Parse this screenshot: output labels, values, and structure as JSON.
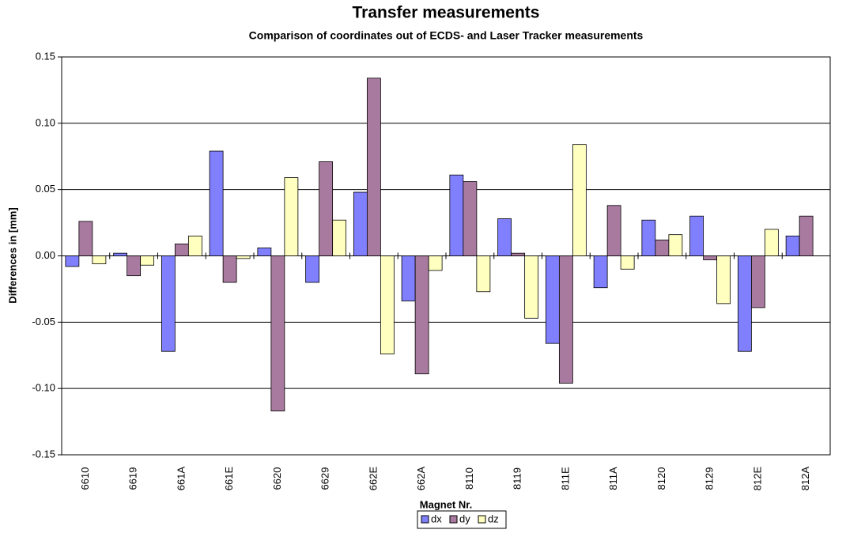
{
  "chart_data": {
    "type": "bar",
    "title": "Transfer measurements",
    "subtitle": "Comparison of coordinates out of ECDS- and Laser Tracker measurements",
    "x_label": "Magnet Nr.",
    "y_label": "Differences in [mm]",
    "categories": [
      "6610",
      "6619",
      "661A",
      "661E",
      "6620",
      "6629",
      "662E",
      "662A",
      "8110",
      "8119",
      "811E",
      "811A",
      "8120",
      "8129",
      "812E",
      "812A"
    ],
    "series": [
      {
        "name": "dx",
        "color": "#8080ff",
        "values": [
          -0.008,
          0.002,
          -0.072,
          0.079,
          0.006,
          -0.02,
          0.048,
          -0.034,
          0.061,
          0.028,
          -0.066,
          -0.024,
          0.027,
          0.03,
          -0.072,
          0.015
        ]
      },
      {
        "name": "dy",
        "color": "#a97a9f",
        "values": [
          0.026,
          -0.015,
          0.009,
          -0.02,
          -0.117,
          0.071,
          0.134,
          -0.089,
          0.056,
          0.002,
          -0.096,
          0.038,
          0.012,
          -0.003,
          -0.039,
          0.03
        ]
      },
      {
        "name": "dz",
        "color": "#ffffc0",
        "values": [
          -0.006,
          -0.007,
          0.015,
          -0.002,
          0.059,
          0.027,
          -0.074,
          -0.011,
          -0.027,
          -0.047,
          0.084,
          -0.01,
          0.016,
          -0.036,
          0.02,
          null
        ]
      }
    ],
    "ylim": [
      -0.15,
      0.15
    ],
    "yticks": [
      -0.15,
      {
        "value": -0.1,
        "label": "-0.10"
      },
      -0.05,
      {
        "value": 0,
        "label": "0.00"
      },
      0.05,
      {
        "value": 0.1,
        "label": "0.10"
      },
      0.15
    ],
    "grid": true,
    "legend": "bottom"
  }
}
